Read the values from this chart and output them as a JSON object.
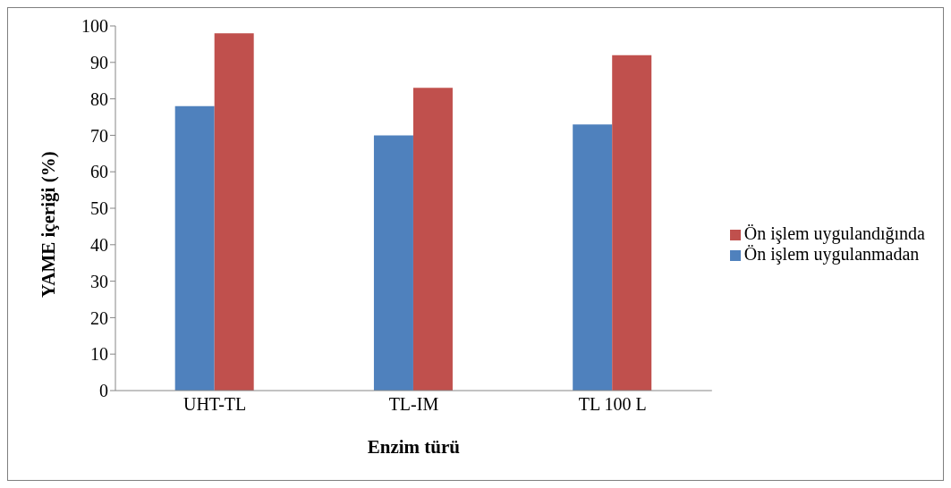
{
  "chart_data": {
    "type": "bar",
    "xlabel": "Enzim türü",
    "ylabel": "YAME içeriği (%)",
    "categories": [
      "UHT-TL",
      "TL-IM",
      "TL 100 L"
    ],
    "series": [
      {
        "name": "Ön işlem uygulanmadan",
        "color": "#4f81bd",
        "values": [
          78,
          70,
          73
        ]
      },
      {
        "name": "Ön işlem uygulandığında",
        "color": "#c0504d",
        "values": [
          98,
          83,
          92
        ]
      }
    ],
    "ylim": [
      0,
      100
    ],
    "yticks": [
      0,
      10,
      20,
      30,
      40,
      50,
      60,
      70,
      80,
      90,
      100
    ],
    "grid": false,
    "legend": "right"
  }
}
